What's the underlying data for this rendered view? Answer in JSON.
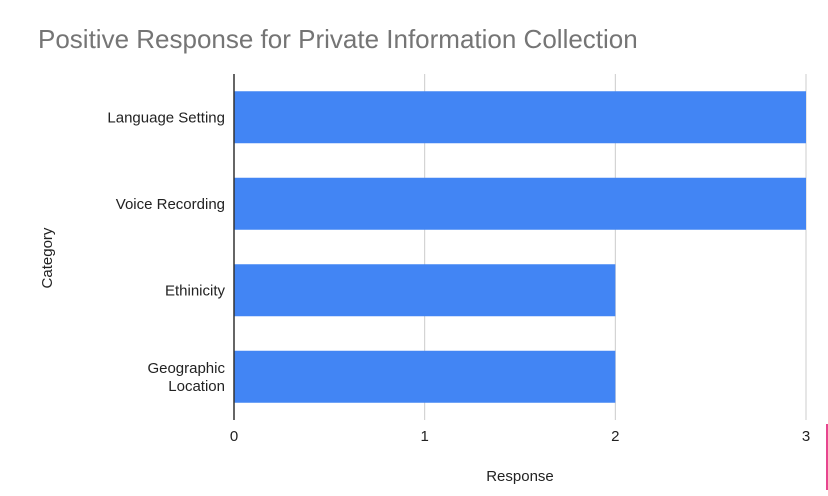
{
  "chart_data": {
    "type": "bar",
    "orientation": "horizontal",
    "title": "Positive Response for Private Information Collection",
    "xlabel": "Response",
    "ylabel": "Category",
    "categories": [
      "Language Setting",
      "Voice Recording",
      "Ethinicity",
      "Geographic Location"
    ],
    "category_lines": [
      [
        "Language Setting"
      ],
      [
        "Voice Recording"
      ],
      [
        "Ethinicity"
      ],
      [
        "Geographic",
        "Location"
      ]
    ],
    "values": [
      3,
      3,
      2,
      2
    ],
    "xlim": [
      0,
      3
    ],
    "xticks": [
      "0",
      "1",
      "2",
      "3"
    ],
    "grid": true,
    "legend": "none",
    "bar_color": "#4285F4"
  },
  "colors": {
    "title": "#757575",
    "grid": "#cccccc",
    "axis": "#333333",
    "accent_mark": "#e8458f"
  }
}
